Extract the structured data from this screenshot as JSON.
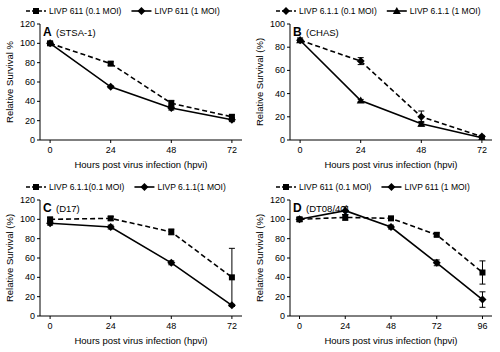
{
  "chart_data": [
    {
      "type": "line",
      "title": "(STSA-1)",
      "annotations": [
        "A"
      ],
      "legend": "top",
      "x_label": "Hours post virus infection (hpvi)",
      "y_label": "Relative Survival %",
      "x": [
        0,
        24,
        48,
        72
      ],
      "xlim": [
        -4,
        76
      ],
      "xticks": [
        0,
        24,
        48,
        72
      ],
      "ylim": [
        0,
        120
      ],
      "yticks": [
        0,
        20,
        40,
        60,
        80,
        100,
        120
      ],
      "grid": false,
      "series": [
        {
          "name": "LIVP 611 (0.1 MOI)",
          "color": "#000000",
          "marker": "square",
          "line_style": "dashed",
          "values": [
            100,
            79,
            38,
            24
          ],
          "errors": [
            2,
            2,
            3,
            2
          ]
        },
        {
          "name": "LIVP 611 (1 MOI)",
          "color": "#000000",
          "marker": "diamond",
          "line_style": "solid",
          "values": [
            100,
            55,
            33,
            21
          ],
          "errors": [
            1,
            1,
            2,
            2
          ]
        }
      ]
    },
    {
      "type": "line",
      "title": "(CHAS)",
      "annotations": [
        "B"
      ],
      "legend": "top",
      "x_label": "Hours post virus infection (hpvi)",
      "y_label": "Relative Survival (%)",
      "x": [
        0,
        24,
        48,
        72
      ],
      "xlim": [
        -4,
        76
      ],
      "xticks": [
        0,
        24,
        48,
        72
      ],
      "ylim": [
        0,
        100
      ],
      "yticks": [
        0,
        20,
        40,
        60,
        80,
        100
      ],
      "grid": false,
      "series": [
        {
          "name": "LIVP 6.1.1 (0.1 MOI)",
          "color": "#000000",
          "marker": "diamond",
          "line_style": "dashed",
          "values": [
            86,
            68,
            20,
            3
          ],
          "errors": [
            2,
            3,
            5,
            1
          ]
        },
        {
          "name": "LIVP 6.1.1 (1 MOI)",
          "color": "#000000",
          "marker": "triangle",
          "line_style": "solid",
          "values": [
            86,
            34,
            14,
            2
          ],
          "errors": [
            1,
            1,
            2,
            1
          ]
        }
      ]
    },
    {
      "type": "line",
      "title": "(D17)",
      "annotations": [
        "C"
      ],
      "legend": "top",
      "x_label": "Hours post virus infection (hpvi)",
      "y_label": "Relative Survival (%)",
      "x": [
        0,
        24,
        48,
        72
      ],
      "xlim": [
        -4,
        76
      ],
      "xticks": [
        0,
        24,
        48,
        72
      ],
      "ylim": [
        0,
        120
      ],
      "yticks": [
        0,
        20,
        40,
        60,
        80,
        100,
        120
      ],
      "grid": false,
      "series": [
        {
          "name": "LIVP 6.1.1(0.1 MOI)",
          "color": "#000000",
          "marker": "square",
          "line_style": "dashed",
          "values": [
            100,
            101,
            87,
            40
          ],
          "errors": [
            2,
            2,
            3,
            30
          ]
        },
        {
          "name": "LIVP 6.1.1(1 MOI)",
          "color": "#000000",
          "marker": "diamond",
          "line_style": "solid",
          "values": [
            96,
            92,
            55,
            11
          ],
          "errors": [
            2,
            2,
            2,
            1
          ]
        }
      ]
    },
    {
      "type": "line",
      "title": "(DT08/40)",
      "annotations": [
        "D"
      ],
      "legend": "top",
      "x_label": "Hours post virus infection (hpvi)",
      "y_label": "Relative Survival (%)",
      "x": [
        0,
        24,
        48,
        72,
        96
      ],
      "xlim": [
        -5,
        101
      ],
      "xticks": [
        0,
        24,
        48,
        72,
        96
      ],
      "ylim": [
        0,
        120
      ],
      "yticks": [
        0,
        20,
        40,
        60,
        80,
        100,
        120
      ],
      "grid": false,
      "series": [
        {
          "name": "LIVP 611 (0.1 MOI)",
          "color": "#000000",
          "marker": "square",
          "line_style": "dashed",
          "values": [
            100,
            102,
            101,
            84,
            45
          ],
          "errors": [
            2,
            3,
            2,
            2,
            12
          ]
        },
        {
          "name": "LIVP 611 (1 MOI)",
          "color": "#000000",
          "marker": "diamond",
          "line_style": "solid",
          "values": [
            100,
            109,
            92,
            55,
            17
          ],
          "errors": [
            2,
            4,
            2,
            3,
            8
          ]
        }
      ]
    }
  ]
}
